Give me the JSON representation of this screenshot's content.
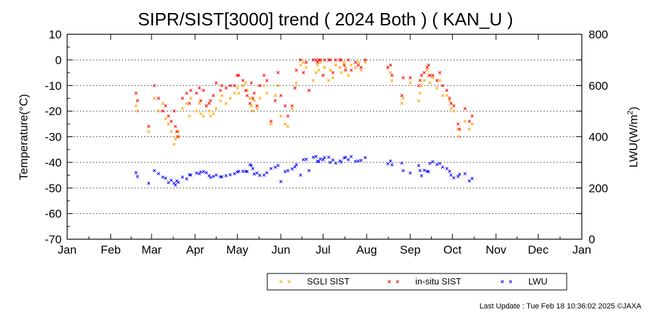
{
  "chart_data": {
    "type": "scatter",
    "title": "SIPR/SIST[3000] trend ( 2024 Both ) ( KAN_U )",
    "ylabel_left": "Temperature(°C)",
    "ylabel_right_main": "LWU(W/m",
    "ylabel_right_sup": "2",
    "ylabel_right_tail": ")",
    "ylim_left": [
      -70,
      10
    ],
    "ylim_right": [
      0,
      800
    ],
    "yticks_left": [
      "10",
      "0",
      "-10",
      "-20",
      "-30",
      "-40",
      "-50",
      "-60",
      "-70"
    ],
    "yticks_right": [
      "800",
      "600",
      "400",
      "200",
      "0"
    ],
    "months": [
      "Jan",
      "Feb",
      "Mar",
      "Apr",
      "May",
      "Jun",
      "Jul",
      "Aug",
      "Sep",
      "Oct",
      "Nov",
      "Dec",
      "Jan"
    ],
    "x_unit": "day of year 2024",
    "grid": "dotted horizontal",
    "legend_position": "bottom-right",
    "marker": "×",
    "series": [
      {
        "name": "SGLI SIST",
        "color": "#ffa500",
        "axis": "left",
        "points": [
          [
            49,
            -18
          ],
          [
            50,
            -20
          ],
          [
            58,
            -28
          ],
          [
            62,
            -15
          ],
          [
            65,
            -20
          ],
          [
            68,
            -17
          ],
          [
            70,
            -23
          ],
          [
            72,
            -25
          ],
          [
            74,
            -28
          ],
          [
            76,
            -33
          ],
          [
            77,
            -31
          ],
          [
            78,
            -30
          ],
          [
            79,
            -28
          ],
          [
            82,
            -19
          ],
          [
            85,
            -17
          ],
          [
            87,
            -22
          ],
          [
            88,
            -15
          ],
          [
            92,
            -20
          ],
          [
            94,
            -17
          ],
          [
            95,
            -21
          ],
          [
            97,
            -22
          ],
          [
            99,
            -18
          ],
          [
            101,
            -20
          ],
          [
            102,
            -22
          ],
          [
            104,
            -21
          ],
          [
            106,
            -19
          ],
          [
            109,
            -16
          ],
          [
            110,
            -14
          ],
          [
            113,
            -17
          ],
          [
            116,
            -15
          ],
          [
            119,
            -13
          ],
          [
            121,
            -11
          ],
          [
            122,
            -13
          ],
          [
            125,
            -10
          ],
          [
            127,
            -9
          ],
          [
            128,
            -12
          ],
          [
            130,
            -15
          ],
          [
            131,
            -18
          ],
          [
            132,
            -20
          ],
          [
            133,
            -16
          ],
          [
            135,
            -19
          ],
          [
            137,
            -15
          ],
          [
            140,
            -10
          ],
          [
            142,
            -13
          ],
          [
            145,
            -25
          ],
          [
            148,
            -14
          ],
          [
            150,
            -10
          ],
          [
            152,
            -22
          ],
          [
            155,
            -25
          ],
          [
            157,
            -26
          ],
          [
            160,
            -19
          ],
          [
            162,
            -11
          ],
          [
            163,
            -9
          ],
          [
            166,
            -2
          ],
          [
            168,
            -1
          ],
          [
            170,
            -3
          ],
          [
            172,
            -12
          ],
          [
            175,
            -8
          ],
          [
            177,
            -5
          ],
          [
            178,
            -2
          ],
          [
            179,
            -4
          ],
          [
            180,
            -1
          ],
          [
            182,
            -6
          ],
          [
            183,
            -3
          ],
          [
            186,
            -8
          ],
          [
            187,
            -4
          ],
          [
            189,
            -7
          ],
          [
            191,
            -2
          ],
          [
            194,
            -3
          ],
          [
            195,
            -5
          ],
          [
            197,
            -1
          ],
          [
            198,
            -3
          ],
          [
            200,
            -6
          ],
          [
            202,
            -2
          ],
          [
            205,
            -3
          ],
          [
            207,
            -1
          ],
          [
            209,
            -4
          ],
          [
            212,
            -1
          ],
          [
            228,
            -3
          ],
          [
            230,
            -5
          ],
          [
            231,
            -8
          ],
          [
            238,
            -17
          ],
          [
            239,
            -15
          ],
          [
            244,
            -9
          ],
          [
            250,
            -16
          ],
          [
            251,
            -13
          ],
          [
            252,
            -10
          ],
          [
            254,
            -8
          ],
          [
            256,
            -4
          ],
          [
            257,
            -6
          ],
          [
            258,
            -9
          ],
          [
            260,
            -7
          ],
          [
            263,
            -11
          ],
          [
            265,
            -8
          ],
          [
            267,
            -14
          ],
          [
            270,
            -14
          ],
          [
            272,
            -16
          ],
          [
            273,
            -19
          ],
          [
            275,
            -20
          ],
          [
            278,
            -27
          ],
          [
            279,
            -30
          ],
          [
            283,
            -24
          ],
          [
            286,
            -27
          ],
          [
            288,
            -25
          ]
        ]
      },
      {
        "name": "in-situ SIST",
        "color": "#ff0000",
        "axis": "left",
        "points": [
          [
            49,
            -13
          ],
          [
            50,
            -16
          ],
          [
            58,
            -26
          ],
          [
            62,
            -10
          ],
          [
            65,
            -15
          ],
          [
            68,
            -20
          ],
          [
            70,
            -18
          ],
          [
            72,
            -22
          ],
          [
            74,
            -24
          ],
          [
            76,
            -20
          ],
          [
            77,
            -26
          ],
          [
            78,
            -28
          ],
          [
            79,
            -30
          ],
          [
            82,
            -15
          ],
          [
            85,
            -13
          ],
          [
            87,
            -17
          ],
          [
            88,
            -12
          ],
          [
            92,
            -13
          ],
          [
            94,
            -11
          ],
          [
            95,
            -16
          ],
          [
            97,
            -12
          ],
          [
            99,
            -18
          ],
          [
            101,
            -17
          ],
          [
            102,
            -16
          ],
          [
            104,
            -14
          ],
          [
            106,
            -9
          ],
          [
            109,
            -12
          ],
          [
            110,
            -10
          ],
          [
            113,
            -11
          ],
          [
            116,
            -10
          ],
          [
            119,
            -10
          ],
          [
            121,
            -6
          ],
          [
            122,
            -6
          ],
          [
            125,
            -8
          ],
          [
            127,
            -12
          ],
          [
            128,
            -14
          ],
          [
            130,
            -17
          ],
          [
            131,
            -9
          ],
          [
            132,
            -15
          ],
          [
            133,
            -13
          ],
          [
            135,
            -18
          ],
          [
            137,
            -10
          ],
          [
            140,
            -6
          ],
          [
            142,
            -8
          ],
          [
            145,
            -24
          ],
          [
            148,
            -16
          ],
          [
            150,
            -5
          ],
          [
            152,
            -14
          ],
          [
            155,
            -18
          ],
          [
            157,
            -22
          ],
          [
            160,
            -18
          ],
          [
            162,
            -11
          ],
          [
            163,
            -4
          ],
          [
            166,
            0
          ],
          [
            168,
            -5
          ],
          [
            170,
            -1
          ],
          [
            172,
            -12
          ],
          [
            175,
            0
          ],
          [
            177,
            0
          ],
          [
            178,
            -1
          ],
          [
            179,
            0
          ],
          [
            180,
            0
          ],
          [
            182,
            -6
          ],
          [
            183,
            0
          ],
          [
            186,
            0
          ],
          [
            187,
            0
          ],
          [
            189,
            -5
          ],
          [
            191,
            0
          ],
          [
            194,
            0
          ],
          [
            195,
            0
          ],
          [
            197,
            -2
          ],
          [
            198,
            -4
          ],
          [
            200,
            0
          ],
          [
            202,
            -4
          ],
          [
            205,
            -1
          ],
          [
            207,
            -2
          ],
          [
            209,
            -3
          ],
          [
            212,
            0
          ],
          [
            228,
            -3
          ],
          [
            230,
            -2
          ],
          [
            231,
            -6
          ],
          [
            238,
            -14
          ],
          [
            239,
            -7
          ],
          [
            244,
            -7
          ],
          [
            250,
            -10
          ],
          [
            251,
            -8
          ],
          [
            252,
            -6
          ],
          [
            254,
            -5
          ],
          [
            256,
            -3
          ],
          [
            257,
            -2
          ],
          [
            258,
            -6
          ],
          [
            260,
            -6
          ],
          [
            263,
            -8
          ],
          [
            265,
            -5
          ],
          [
            267,
            -10
          ],
          [
            270,
            -12
          ],
          [
            272,
            -15
          ],
          [
            273,
            -17
          ],
          [
            275,
            -18
          ],
          [
            278,
            -25
          ],
          [
            279,
            -27
          ],
          [
            283,
            -19
          ],
          [
            286,
            -24
          ],
          [
            288,
            -22
          ]
        ]
      },
      {
        "name": "LWU",
        "color": "#0000ff",
        "axis": "right",
        "points": [
          [
            49,
            260
          ],
          [
            50,
            245
          ],
          [
            58,
            218
          ],
          [
            62,
            267
          ],
          [
            65,
            255
          ],
          [
            68,
            242
          ],
          [
            70,
            238
          ],
          [
            72,
            221
          ],
          [
            74,
            230
          ],
          [
            76,
            218
          ],
          [
            77,
            212
          ],
          [
            78,
            228
          ],
          [
            79,
            222
          ],
          [
            82,
            242
          ],
          [
            85,
            236
          ],
          [
            87,
            252
          ],
          [
            88,
            250
          ],
          [
            92,
            258
          ],
          [
            94,
            255
          ],
          [
            95,
            262
          ],
          [
            97,
            264
          ],
          [
            99,
            260
          ],
          [
            101,
            247
          ],
          [
            102,
            241
          ],
          [
            104,
            245
          ],
          [
            106,
            250
          ],
          [
            109,
            244
          ],
          [
            110,
            244
          ],
          [
            113,
            248
          ],
          [
            116,
            251
          ],
          [
            119,
            256
          ],
          [
            121,
            262
          ],
          [
            122,
            265
          ],
          [
            125,
            265
          ],
          [
            127,
            265
          ],
          [
            128,
            264
          ],
          [
            130,
            290
          ],
          [
            131,
            288
          ],
          [
            132,
            275
          ],
          [
            133,
            254
          ],
          [
            135,
            258
          ],
          [
            137,
            249
          ],
          [
            140,
            250
          ],
          [
            142,
            260
          ],
          [
            145,
            275
          ],
          [
            148,
            281
          ],
          [
            150,
            287
          ],
          [
            152,
            225
          ],
          [
            155,
            264
          ],
          [
            157,
            268
          ],
          [
            160,
            274
          ],
          [
            162,
            282
          ],
          [
            163,
            290
          ],
          [
            166,
            250
          ],
          [
            168,
            310
          ],
          [
            170,
            312
          ],
          [
            172,
            267
          ],
          [
            175,
            320
          ],
          [
            177,
            322
          ],
          [
            178,
            304
          ],
          [
            179,
            302
          ],
          [
            180,
            313
          ],
          [
            182,
            311
          ],
          [
            183,
            318
          ],
          [
            186,
            320
          ],
          [
            187,
            299
          ],
          [
            189,
            309
          ],
          [
            191,
            297
          ],
          [
            194,
            305
          ],
          [
            195,
            301
          ],
          [
            197,
            317
          ],
          [
            198,
            320
          ],
          [
            200,
            310
          ],
          [
            202,
            323
          ],
          [
            205,
            304
          ],
          [
            207,
            305
          ],
          [
            209,
            308
          ],
          [
            212,
            318
          ],
          [
            228,
            294
          ],
          [
            230,
            305
          ],
          [
            231,
            290
          ],
          [
            238,
            297
          ],
          [
            239,
            268
          ],
          [
            244,
            258
          ],
          [
            250,
            287
          ],
          [
            251,
            268
          ],
          [
            252,
            248
          ],
          [
            254,
            269
          ],
          [
            256,
            265
          ],
          [
            257,
            264
          ],
          [
            258,
            296
          ],
          [
            260,
            303
          ],
          [
            263,
            291
          ],
          [
            265,
            295
          ],
          [
            267,
            281
          ],
          [
            270,
            276
          ],
          [
            272,
            265
          ],
          [
            273,
            250
          ],
          [
            275,
            240
          ],
          [
            278,
            245
          ],
          [
            279,
            253
          ],
          [
            283,
            255
          ],
          [
            286,
            228
          ],
          [
            288,
            237
          ]
        ]
      }
    ]
  },
  "footer": {
    "last_update": "Last Update : Tue Feb 18 10:36:02 2025 ©JAXA"
  }
}
